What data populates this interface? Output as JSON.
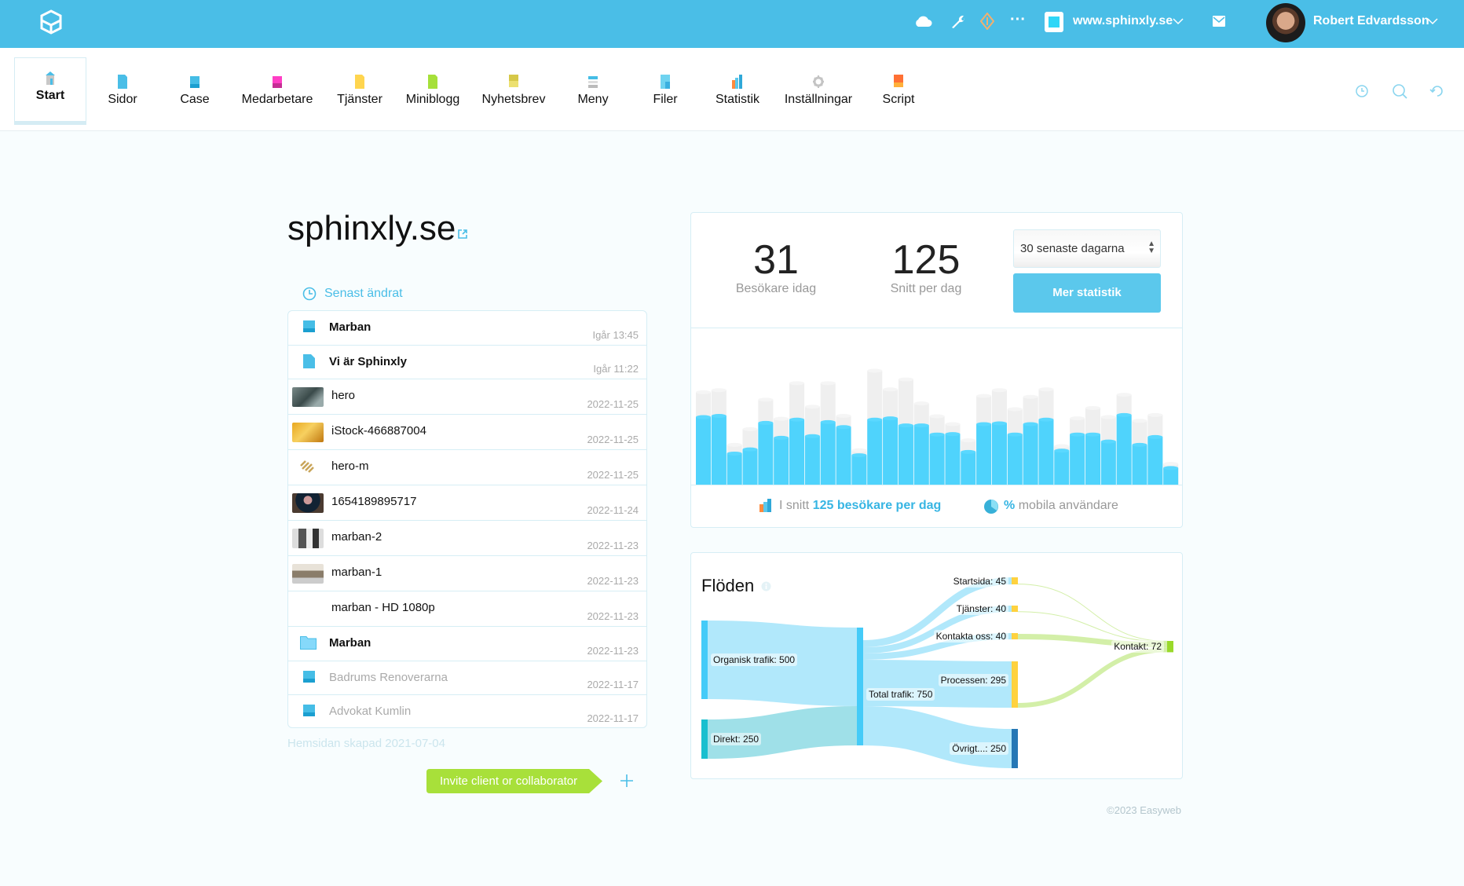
{
  "topbar": {
    "site": "www.sphinxly.se",
    "user": "Robert Edvardsson",
    "icons": [
      "logo-cube-icon",
      "cloud-icon",
      "wrench-icon",
      "diamond-icon",
      "more-icon",
      "site-icon",
      "chevron-down-icon",
      "mail-icon",
      "avatar",
      "chevron-down-icon"
    ]
  },
  "nav": {
    "items": [
      {
        "label": "Start",
        "icon": "home-icon",
        "active": true
      },
      {
        "label": "Sidor",
        "icon": "page-icon"
      },
      {
        "label": "Case",
        "icon": "case-icon"
      },
      {
        "label": "Medarbetare",
        "icon": "staff-icon"
      },
      {
        "label": "Tjänster",
        "icon": "services-icon"
      },
      {
        "label": "Miniblogg",
        "icon": "blog-icon"
      },
      {
        "label": "Nyhetsbrev",
        "icon": "newsletter-icon"
      },
      {
        "label": "Meny",
        "icon": "menu-icon"
      },
      {
        "label": "Filer",
        "icon": "files-icon"
      },
      {
        "label": "Statistik",
        "icon": "stats-icon"
      },
      {
        "label": "Inställningar",
        "icon": "gear-icon"
      },
      {
        "label": "Script",
        "icon": "script-icon"
      }
    ],
    "right_icons": [
      "history-icon",
      "search-icon",
      "refresh-icon"
    ]
  },
  "site": {
    "title": "sphinxly.se",
    "recent_label": "Senast ändrat",
    "created": "Hemsidan skapad 2021-07-04",
    "invite": "Invite client or collaborator",
    "footer": "©2023 Easyweb"
  },
  "recent": [
    {
      "type": "case",
      "name": "Marban",
      "date": "Igår 13:45",
      "bold": true
    },
    {
      "type": "page",
      "name": "Vi är Sphinxly",
      "date": "Igår 11:22",
      "bold": true
    },
    {
      "type": "image",
      "thumb": "room",
      "name": "hero",
      "date": "2022-11-25"
    },
    {
      "type": "image",
      "thumb": "gold",
      "name": "iStock-466887004",
      "date": "2022-11-25"
    },
    {
      "type": "image",
      "thumb": "logo",
      "name": "hero-m",
      "date": "2022-11-25"
    },
    {
      "type": "image",
      "thumb": "portrait",
      "name": "1654189895717",
      "date": "2022-11-24"
    },
    {
      "type": "image",
      "thumb": "screens",
      "name": "marban-2",
      "date": "2022-11-23"
    },
    {
      "type": "image",
      "thumb": "screens2",
      "name": "marban-1",
      "date": "2022-11-23"
    },
    {
      "type": "video",
      "name": "marban - HD 1080p",
      "date": "2022-11-23"
    },
    {
      "type": "folder",
      "name": "Marban",
      "date": "2022-11-23",
      "bold": true
    },
    {
      "type": "case",
      "name": "Badrums Renoverarna",
      "date": "2022-11-17",
      "dim": true
    },
    {
      "type": "case",
      "name": "Advokat Kumlin",
      "date": "2022-11-17",
      "dim": true
    }
  ],
  "stats": {
    "today": "31",
    "today_label": "Besökare idag",
    "avg": "125",
    "avg_label": "Snitt per dag",
    "period": "30 senaste dagarna",
    "more": "Mer statistik",
    "legend_pre": "I snitt",
    "legend_bold": "125 besökare per dag",
    "mobile_bold": "%",
    "mobile_text": "mobila användare"
  },
  "chart_data": [
    {
      "type": "bar",
      "colors": {
        "current": "#4fd3fc",
        "previous": "#efefef"
      },
      "series": [
        {
          "values": [
            163,
            166,
            75,
            85,
            149,
            113,
            157,
            117,
            151,
            139,
            71,
            157,
            160,
            143,
            143,
            121,
            122,
            79,
            146,
            148,
            121,
            146,
            157,
            82,
            121,
            121,
            104,
            168,
            96,
            115,
            40
          ]
        },
        {
          "values": [
            223,
            228,
            96,
            134,
            205,
            159,
            245,
            188,
            245,
            166,
            83,
            275,
            230,
            254,
            196,
            165,
            146,
            107,
            214,
            228,
            182,
            212,
            230,
            93,
            160,
            185,
            163,
            217,
            154,
            168,
            50
          ]
        }
      ],
      "ylim": [
        0,
        300
      ],
      "grid": false
    },
    {
      "type": "sankey",
      "title": "Flöden",
      "nodes": [
        {
          "name": "Organisk trafik",
          "value": 500,
          "color": "#45cbf8"
        },
        {
          "name": "Direkt",
          "value": 250,
          "color": "#19bfcf"
        },
        {
          "name": "Total trafik",
          "value": 750,
          "color": "#45cbf8"
        },
        {
          "name": "Startsida",
          "value": 45,
          "color": "#ffd23f"
        },
        {
          "name": "Tjänster",
          "value": 40,
          "color": "#ffd23f"
        },
        {
          "name": "Kontakta oss",
          "value": 40,
          "color": "#ffd23f"
        },
        {
          "name": "Processen",
          "value": 295,
          "color": "#ffd23f"
        },
        {
          "name": "Övrigt...",
          "value": 250,
          "color": "#2577b5"
        },
        {
          "name": "Kontakt",
          "value": 72,
          "color": "#9ad92a"
        }
      ],
      "links": [
        {
          "from": "Organisk trafik",
          "to": "Total trafik",
          "value": 500
        },
        {
          "from": "Direkt",
          "to": "Total trafik",
          "value": 250
        },
        {
          "from": "Total trafik",
          "to": "Startsida",
          "value": 45
        },
        {
          "from": "Total trafik",
          "to": "Tjänster",
          "value": 40
        },
        {
          "from": "Total trafik",
          "to": "Kontakta oss",
          "value": 40
        },
        {
          "from": "Total trafik",
          "to": "Processen",
          "value": 295
        },
        {
          "from": "Total trafik",
          "to": "Övrigt...",
          "value": 250
        },
        {
          "from": "Startsida",
          "to": "Kontakt",
          "value": 4
        },
        {
          "from": "Tjänster",
          "to": "Kontakt",
          "value": 3
        },
        {
          "from": "Kontakta oss",
          "to": "Kontakt",
          "value": 35
        },
        {
          "from": "Processen",
          "to": "Kontakt",
          "value": 30
        }
      ]
    }
  ]
}
